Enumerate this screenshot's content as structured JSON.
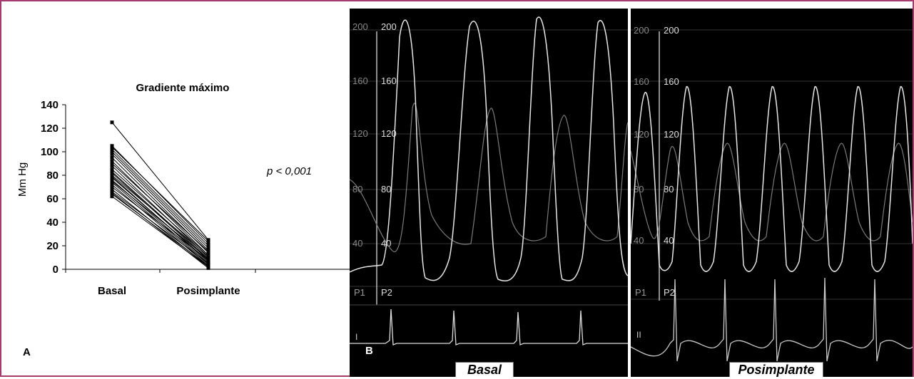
{
  "panel_a": {
    "label": "A",
    "annotation": "p < 0,001"
  },
  "panel_b": {
    "label": "B",
    "caption": "Basal",
    "scale_outer": [
      "200",
      "160",
      "120",
      "80",
      "40"
    ],
    "scale_inner": [
      "200",
      "160",
      "120",
      "80",
      "40"
    ],
    "channel_p1": "P1",
    "channel_p2": "P2",
    "lead": "I"
  },
  "panel_c": {
    "caption": "Posimplante",
    "scale_outer": [
      "200",
      "160",
      "120",
      "80",
      "40"
    ],
    "scale_inner": [
      "200",
      "160",
      "120",
      "80",
      "40"
    ],
    "channel_p1": "P1",
    "channel_p2": "P2",
    "lead": "II"
  },
  "colors": {
    "frame_border": "#a53a6e",
    "monitor_bg": "#000000",
    "trace_primary": "#e6e6e6",
    "trace_secondary": "#7a7a7a"
  },
  "chart_data": {
    "type": "line",
    "title": "Gradiente máximo",
    "xlabel": "",
    "ylabel": "Mm Hg",
    "categories": [
      "Basal",
      "Posimplante"
    ],
    "yticks": [
      0,
      20,
      40,
      60,
      80,
      100,
      120,
      140
    ],
    "ylim": [
      0,
      140
    ],
    "grid": false,
    "legend": "none",
    "pairs": [
      [
        125,
        25
      ],
      [
        105,
        22
      ],
      [
        104,
        24
      ],
      [
        102,
        20
      ],
      [
        100,
        18
      ],
      [
        98,
        16
      ],
      [
        95,
        14
      ],
      [
        92,
        12
      ],
      [
        90,
        15
      ],
      [
        88,
        10
      ],
      [
        85,
        12
      ],
      [
        83,
        9
      ],
      [
        82,
        8
      ],
      [
        80,
        11
      ],
      [
        79,
        6
      ],
      [
        78,
        7
      ],
      [
        76,
        5
      ],
      [
        75,
        9
      ],
      [
        74,
        4
      ],
      [
        72,
        3
      ],
      [
        70,
        8
      ],
      [
        68,
        2
      ],
      [
        66,
        5
      ],
      [
        65,
        1
      ],
      [
        64,
        3
      ],
      [
        62,
        2
      ]
    ]
  }
}
